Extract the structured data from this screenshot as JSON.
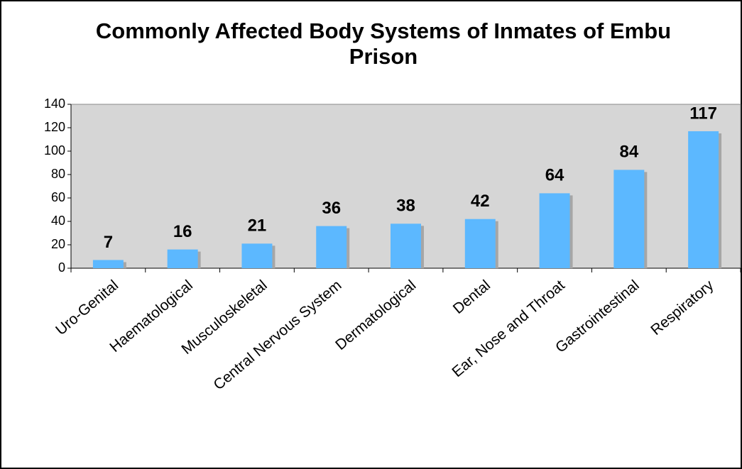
{
  "chart_data": {
    "type": "bar",
    "title": "Commonly Affected Body Systems of Inmates of Embu Prison",
    "categories": [
      "Uro-Genital",
      "Haematological",
      "Musculoskeletal",
      "Central Nervous System",
      "Dermatological",
      "Dental",
      "Ear, Nose and Throat",
      "Gastrointestinal",
      "Respiratory"
    ],
    "values": [
      7,
      16,
      21,
      36,
      38,
      42,
      64,
      84,
      117
    ],
    "color": "#5cb8ff",
    "ylim": [
      0,
      140
    ],
    "yticks": [
      0,
      20,
      40,
      60,
      80,
      100,
      120,
      140
    ],
    "grid": false
  }
}
